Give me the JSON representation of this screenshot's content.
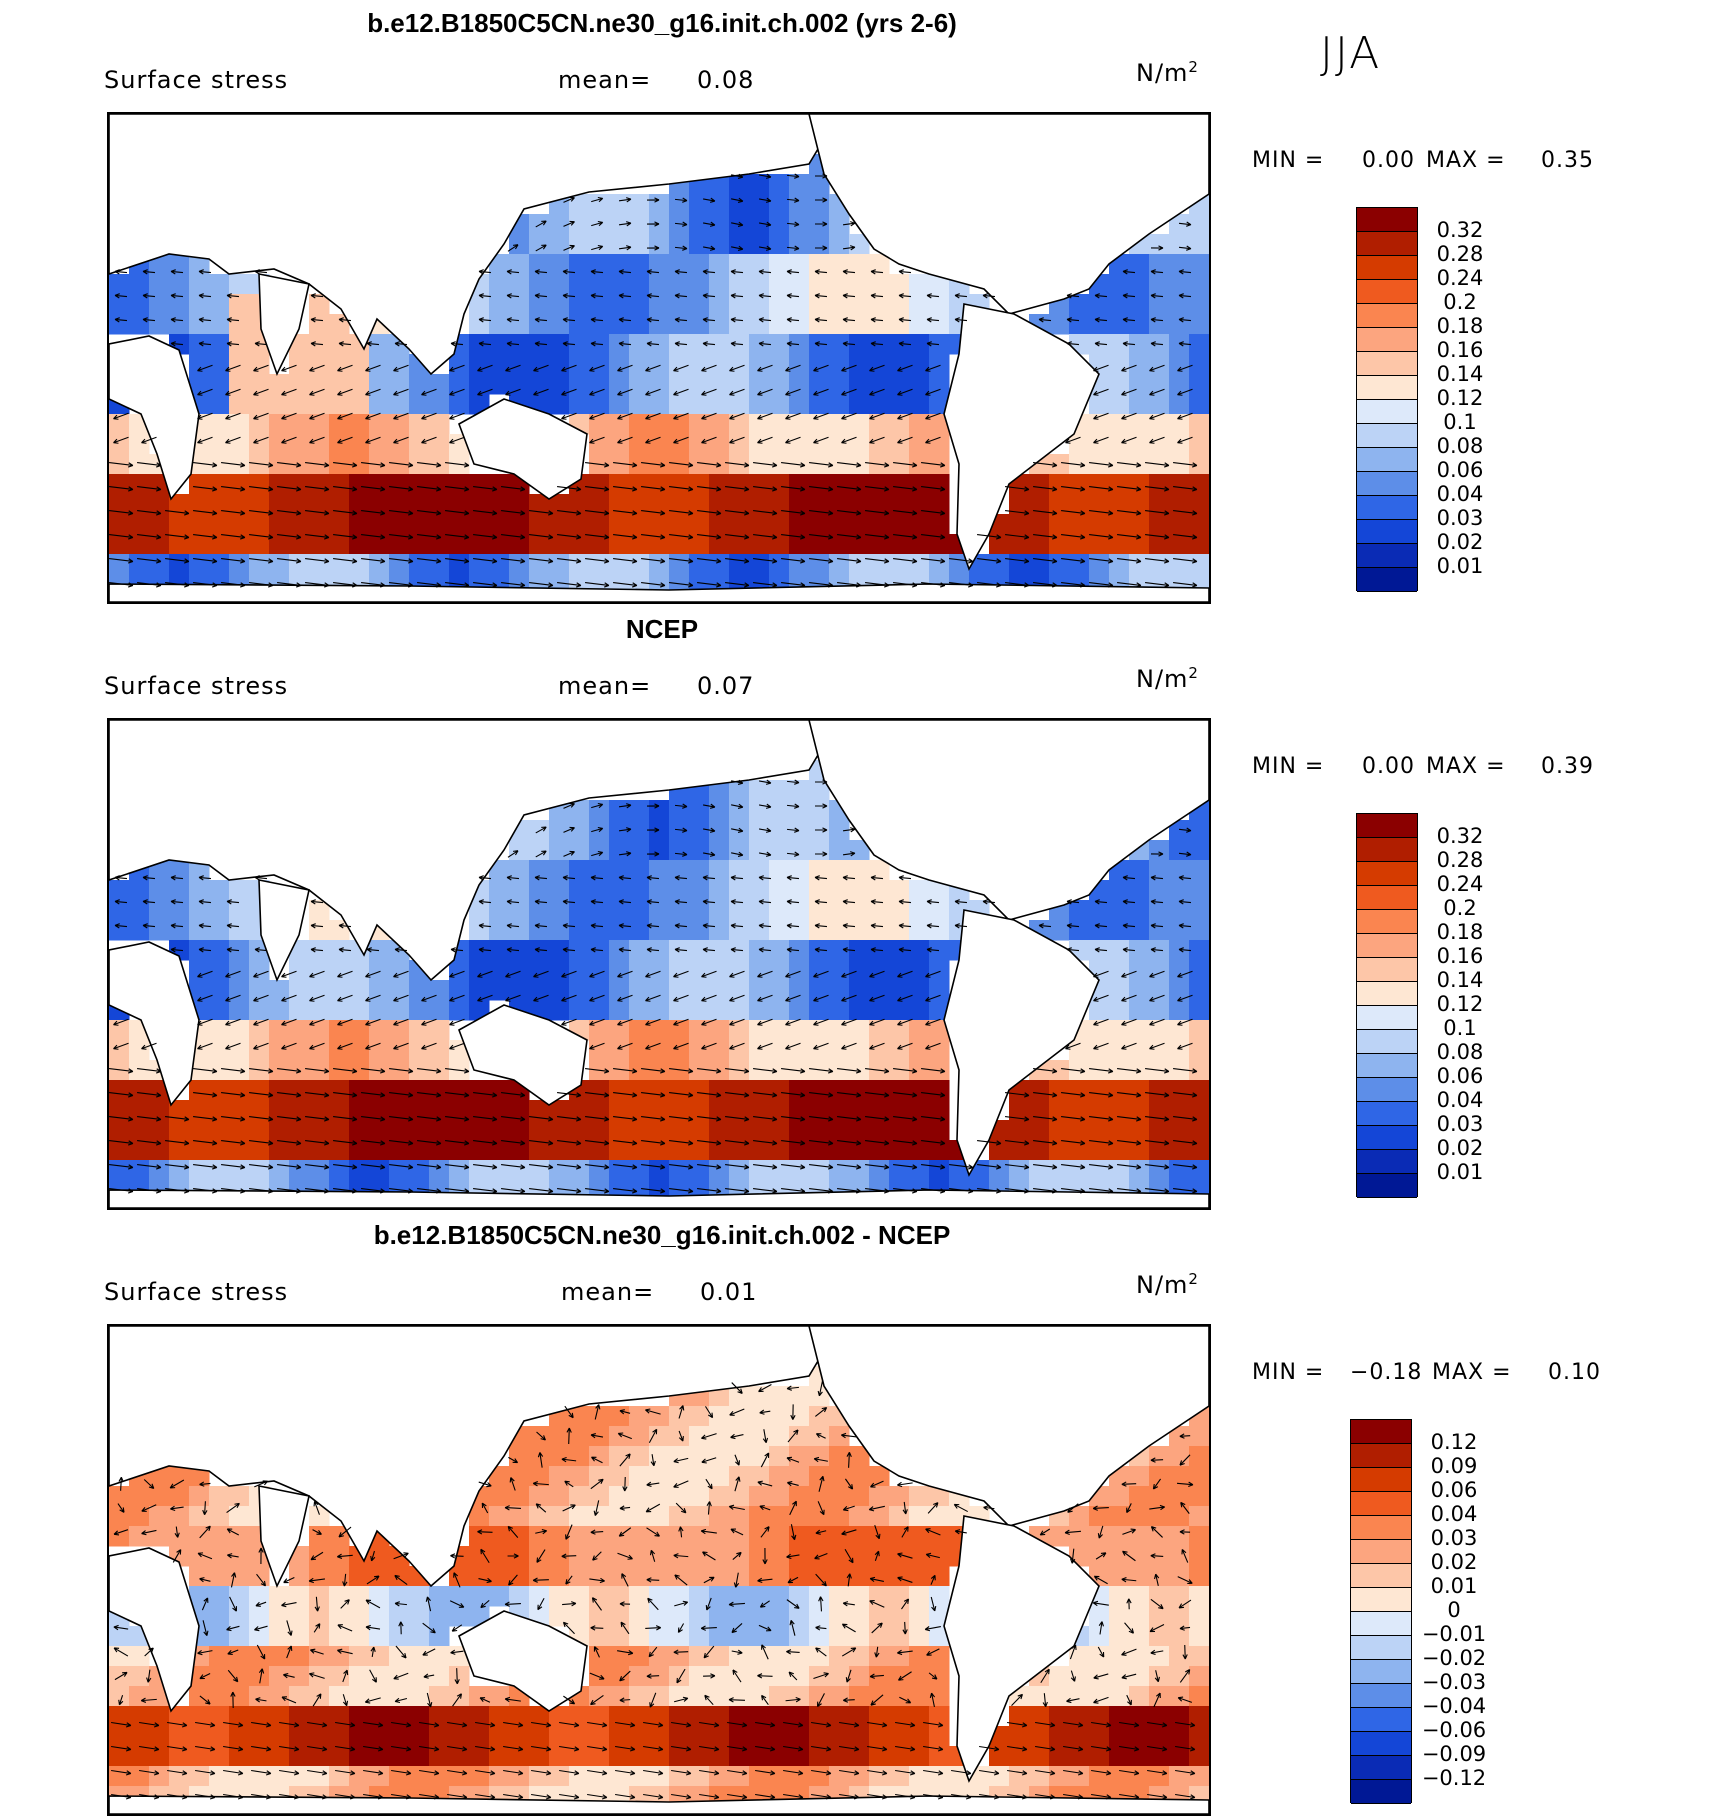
{
  "season": "JJA",
  "chart_data": [
    {
      "type": "heatmap",
      "title": "b.e12.B1850C5CN.ne30_g16.init.ch.002 (yrs 2-6)",
      "variable": "Surface stress",
      "mean_label": "mean=",
      "mean": "0.08",
      "units_base": "N/m",
      "units_exp": "2",
      "min_label": "MIN =",
      "min": "0.00",
      "max_label": "MAX =",
      "max": "0.35",
      "colorbar_levels": [
        "0.32",
        "0.28",
        "0.24",
        "0.2",
        "0.18",
        "0.16",
        "0.14",
        "0.12",
        "0.1",
        "0.08",
        "0.06",
        "0.04",
        "0.03",
        "0.02",
        "0.01"
      ],
      "colorbar_colors": [
        "#8b0000",
        "#b01e00",
        "#d53b00",
        "#ef5a1f",
        "#fa8550",
        "#fca57f",
        "#fdc6a8",
        "#fee7d3",
        "#dde9fa",
        "#bcd3f6",
        "#8eb4ef",
        "#5d8ee8",
        "#2f66e6",
        "#1446d7",
        "#0a2bb5",
        "#001895"
      ],
      "style": "positive"
    },
    {
      "type": "heatmap",
      "title": "NCEP",
      "variable": "Surface stress",
      "mean_label": "mean=",
      "mean": "0.07",
      "units_base": "N/m",
      "units_exp": "2",
      "min_label": "MIN =",
      "min": "0.00",
      "max_label": "MAX =",
      "max": "0.39",
      "colorbar_levels": [
        "0.32",
        "0.28",
        "0.24",
        "0.2",
        "0.18",
        "0.16",
        "0.14",
        "0.12",
        "0.1",
        "0.08",
        "0.06",
        "0.04",
        "0.03",
        "0.02",
        "0.01"
      ],
      "colorbar_colors": [
        "#8b0000",
        "#b01e00",
        "#d53b00",
        "#ef5a1f",
        "#fa8550",
        "#fca57f",
        "#fdc6a8",
        "#fee7d3",
        "#dde9fa",
        "#bcd3f6",
        "#8eb4ef",
        "#5d8ee8",
        "#2f66e6",
        "#1446d7",
        "#0a2bb5",
        "#001895"
      ],
      "style": "positive"
    },
    {
      "type": "heatmap",
      "title": "b.e12.B1850C5CN.ne30_g16.init.ch.002 - NCEP",
      "variable": "Surface stress",
      "mean_label": "mean=",
      "mean": "0.01",
      "units_base": "N/m",
      "units_exp": "2",
      "min_label": "MIN =",
      "min": "−0.18",
      "max_label": "MAX =",
      "max": "0.10",
      "colorbar_levels": [
        "0.12",
        "0.09",
        "0.06",
        "0.04",
        "0.03",
        "0.02",
        "0.01",
        "0",
        "−0.01",
        "−0.02",
        "−0.03",
        "−0.04",
        "−0.06",
        "−0.09",
        "−0.12"
      ],
      "colorbar_colors": [
        "#8b0000",
        "#b01e00",
        "#d53b00",
        "#ef5a1f",
        "#fa8550",
        "#fca57f",
        "#fdc6a8",
        "#fee7d3",
        "#dde9fa",
        "#bcd3f6",
        "#8eb4ef",
        "#5d8ee8",
        "#2f66e6",
        "#1446d7",
        "#0a2bb5",
        "#001895"
      ],
      "style": "difference"
    }
  ]
}
